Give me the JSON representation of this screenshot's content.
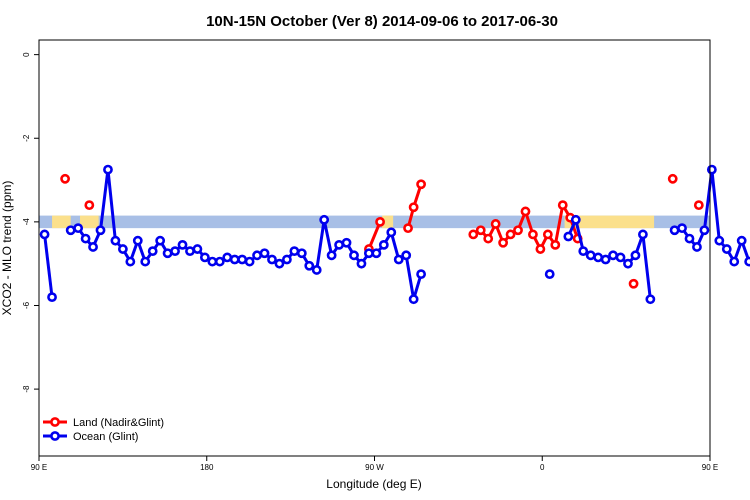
{
  "chart_data": {
    "type": "line",
    "title": "10N-15N October (Ver 8)   2014-09-06 to 2017-06-30",
    "xlabel": "Longitude (deg E)",
    "ylabel": "XCO2 - MLO trend (ppm)",
    "xlim": [
      90,
      450
    ],
    "ylim": [
      -9.6,
      0.35
    ],
    "x_ticks": [
      {
        "value": 90,
        "label": "90 E"
      },
      {
        "value": 180,
        "label": "180"
      },
      {
        "value": 270,
        "label": "90 W"
      },
      {
        "value": 360,
        "label": "0"
      },
      {
        "value": 450,
        "label": "90 E"
      },
      {
        "value": 540,
        "label": "180"
      }
    ],
    "y_ticks": [
      {
        "value": 0,
        "label": "0"
      },
      {
        "value": -2,
        "label": "-2"
      },
      {
        "value": -4,
        "label": "-4"
      },
      {
        "value": -6,
        "label": "-6"
      },
      {
        "value": -8,
        "label": "-8"
      }
    ],
    "legend_position": "bottom-left",
    "grid": false,
    "band": {
      "y_low": -4.15,
      "y_high": -3.85,
      "color": "#a8bfe6",
      "yellow_color": "#fbe08c",
      "yellow_ranges": [
        [
          97,
          107
        ],
        [
          112,
          122
        ],
        [
          274,
          280
        ],
        [
          372,
          420
        ],
        [
          500,
          505
        ],
        [
          519,
          527
        ]
      ]
    },
    "series": [
      {
        "name": "Land (Nadir&Glint)",
        "color": "#ff0000",
        "segments": [
          [
            [
              104,
              -2.97
            ]
          ],
          [
            [
              117,
              -3.6
            ]
          ],
          [
            [
              267,
              -4.65
            ],
            [
              273,
              -4.0
            ]
          ],
          [
            [
              288,
              -4.15
            ],
            [
              291,
              -3.65
            ],
            [
              295,
              -3.1
            ]
          ],
          [
            [
              323,
              -4.3
            ],
            [
              327,
              -4.2
            ],
            [
              331,
              -4.4
            ],
            [
              335,
              -4.05
            ],
            [
              339,
              -4.5
            ],
            [
              343,
              -4.3
            ],
            [
              347,
              -4.2
            ],
            [
              351,
              -3.75
            ],
            [
              355,
              -4.3
            ],
            [
              359,
              -4.65
            ],
            [
              363,
              -4.3
            ],
            [
              367,
              -4.55
            ],
            [
              371,
              -3.6
            ],
            [
              375,
              -3.9
            ],
            [
              379,
              -4.4
            ]
          ],
          [
            [
              409,
              -5.48
            ]
          ],
          [
            [
              430,
              -2.97
            ]
          ],
          [
            [
              444,
              -3.6
            ]
          ]
        ]
      },
      {
        "name": "Ocean (Glint)",
        "color": "#0000ee",
        "segments": [
          [
            [
              93,
              -4.3
            ],
            [
              97,
              -5.8
            ]
          ],
          [
            [
              107,
              -4.2
            ],
            [
              111,
              -4.15
            ],
            [
              115,
              -4.4
            ],
            [
              119,
              -4.6
            ],
            [
              123,
              -4.2
            ],
            [
              127,
              -2.75
            ],
            [
              131,
              -4.45
            ],
            [
              135,
              -4.65
            ],
            [
              139,
              -4.95
            ],
            [
              143,
              -4.45
            ],
            [
              147,
              -4.95
            ],
            [
              151,
              -4.7
            ],
            [
              155,
              -4.45
            ],
            [
              159,
              -4.75
            ],
            [
              163,
              -4.7
            ],
            [
              167,
              -4.55
            ],
            [
              171,
              -4.7
            ],
            [
              175,
              -4.65
            ],
            [
              179,
              -4.85
            ],
            [
              183,
              -4.95
            ],
            [
              187,
              -4.95
            ],
            [
              191,
              -4.85
            ],
            [
              195,
              -4.9
            ],
            [
              199,
              -4.9
            ],
            [
              203,
              -4.95
            ],
            [
              207,
              -4.8
            ],
            [
              211,
              -4.75
            ],
            [
              215,
              -4.9
            ],
            [
              219,
              -5.0
            ],
            [
              223,
              -4.9
            ],
            [
              227,
              -4.7
            ],
            [
              231,
              -4.75
            ],
            [
              235,
              -5.05
            ],
            [
              239,
              -5.15
            ],
            [
              243,
              -3.95
            ],
            [
              247,
              -4.8
            ],
            [
              251,
              -4.55
            ],
            [
              255,
              -4.5
            ],
            [
              259,
              -4.8
            ],
            [
              263,
              -5.0
            ],
            [
              267,
              -4.75
            ],
            [
              271,
              -4.75
            ],
            [
              275,
              -4.55
            ],
            [
              279,
              -4.25
            ],
            [
              283,
              -4.9
            ],
            [
              287,
              -4.8
            ],
            [
              291,
              -5.85
            ],
            [
              295,
              -5.25
            ]
          ],
          [
            [
              364,
              -5.25
            ]
          ],
          [
            [
              374,
              -4.35
            ],
            [
              378,
              -3.95
            ],
            [
              382,
              -4.7
            ],
            [
              386,
              -4.8
            ],
            [
              390,
              -4.85
            ],
            [
              394,
              -4.9
            ],
            [
              398,
              -4.8
            ],
            [
              402,
              -4.85
            ],
            [
              406,
              -5.0
            ],
            [
              410,
              -4.8
            ],
            [
              414,
              -4.3
            ],
            [
              418,
              -5.85
            ]
          ],
          [
            [
              431,
              -4.2
            ],
            [
              435,
              -4.15
            ],
            [
              439,
              -4.4
            ],
            [
              443,
              -4.6
            ],
            [
              447,
              -4.2
            ],
            [
              451,
              -2.75
            ],
            [
              455,
              -4.45
            ],
            [
              459,
              -4.65
            ],
            [
              463,
              -4.95
            ],
            [
              467,
              -4.45
            ],
            [
              471,
              -4.95
            ],
            [
              475,
              -4.7
            ],
            [
              479,
              -4.45
            ],
            [
              483,
              -4.75
            ],
            [
              487,
              -4.7
            ],
            [
              491,
              -4.55
            ],
            [
              495,
              -4.7
            ],
            [
              499,
              -4.65
            ]
          ]
        ]
      }
    ]
  }
}
